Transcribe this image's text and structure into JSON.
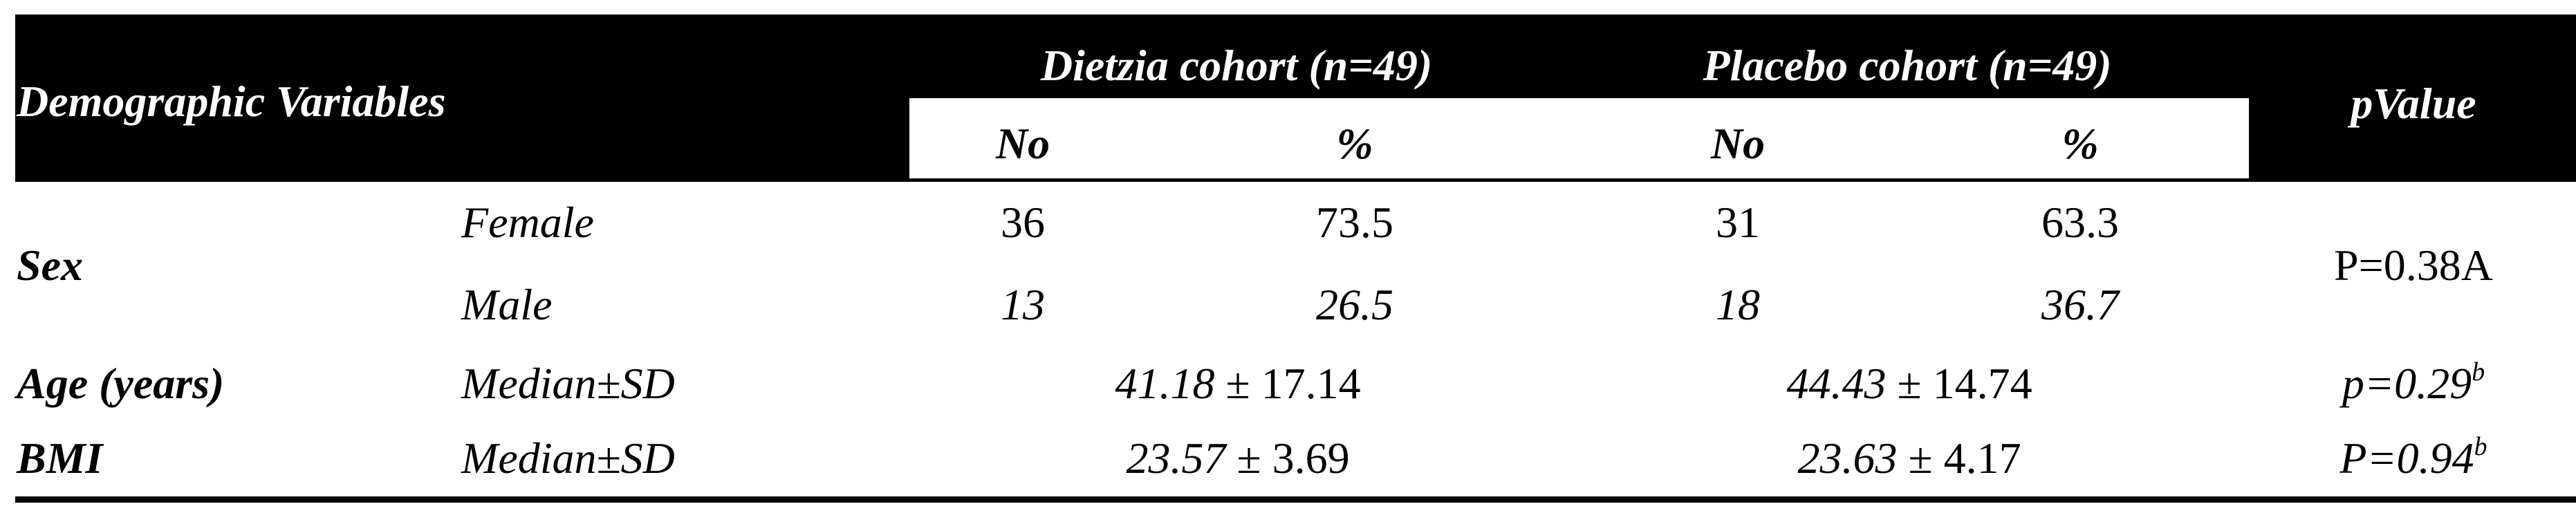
{
  "header": {
    "demographic_variables": "Demographic Variables",
    "dietzia_cohort": "Dietzia cohort (n=49)",
    "placebo_cohort": "Placebo cohort (n=49)",
    "pvalue": "pValue",
    "no": "No",
    "percent": "%"
  },
  "rows": {
    "sex": {
      "label": "Sex",
      "female": {
        "label": "Female",
        "dietzia_no": "36",
        "dietzia_pct": "73.5",
        "placebo_no": "31",
        "placebo_pct": "63.3"
      },
      "male": {
        "label": "Male",
        "dietzia_no": "13",
        "dietzia_pct": "26.5",
        "placebo_no": "18",
        "placebo_pct": "36.7"
      },
      "pvalue": "P=0.38A"
    },
    "age": {
      "label": "Age (years)",
      "stat": "Median±SD",
      "dietzia_median": "41.18",
      "dietzia_sd": "± 17.14",
      "placebo_median": "44.43",
      "placebo_sd": "± 14.74",
      "pvalue": "p=0.29",
      "pvalue_sup": "b"
    },
    "bmi": {
      "label": "BMI",
      "stat": "Median±SD",
      "dietzia_median": "23.57",
      "dietzia_sd": "± 3.69",
      "placebo_median": "23.63",
      "placebo_sd": "± 4.17",
      "pvalue": "P=0.94",
      "pvalue_sup": "b"
    }
  }
}
